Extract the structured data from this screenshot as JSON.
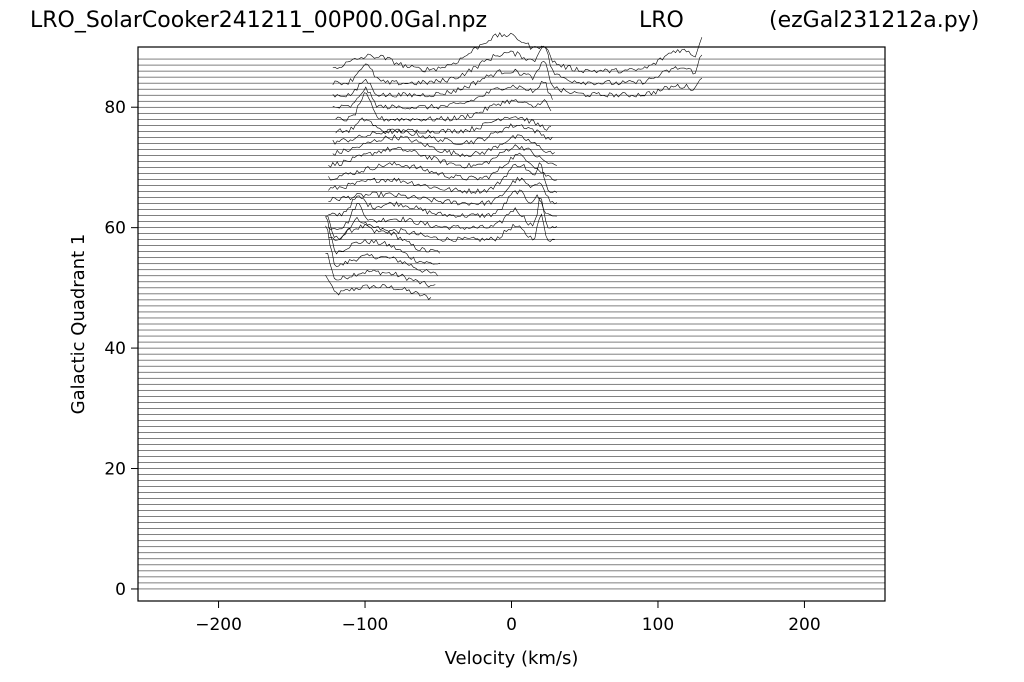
{
  "titles": {
    "left": "LRO_SolarCooker241211_00P00.0Gal.npz",
    "center": "LRO",
    "right": "(ezGal231212a.py)"
  },
  "chart_data": {
    "type": "line",
    "subtype": "waterfall (stacked spectra)",
    "xlabel": "Velocity (km/s)",
    "ylabel": "Galactic Quadrant 1",
    "xlim": [
      -255,
      255
    ],
    "ylim": [
      -2,
      90
    ],
    "xticks": [
      -200,
      -100,
      0,
      100,
      200
    ],
    "xtick_labels": [
      "−200",
      "−100",
      "0",
      "100",
      "200"
    ],
    "yticks": [
      0,
      20,
      40,
      60,
      80
    ],
    "ytick_labels": [
      "0",
      "20",
      "40",
      "60",
      "80"
    ],
    "line_color": "#000000",
    "baseline_count": 89,
    "baseline_min": 0,
    "baseline_max": 88,
    "spectra": [
      {
        "lon": 48,
        "vmin": -127,
        "vmax": -55,
        "peaks": [
          [
            -127,
            3.5,
            3
          ],
          [
            -100,
            2.0,
            16
          ],
          [
            -75,
            1.2,
            12
          ]
        ]
      },
      {
        "lon": 50,
        "vmin": -127,
        "vmax": -52,
        "peaks": [
          [
            -127,
            5.5,
            3
          ],
          [
            -100,
            2.5,
            16
          ],
          [
            -75,
            1.2,
            12
          ]
        ]
      },
      {
        "lon": 52,
        "vmin": -127,
        "vmax": -50,
        "peaks": [
          [
            -127,
            7.5,
            3
          ],
          [
            -100,
            3.0,
            16
          ],
          [
            -75,
            1.5,
            12
          ]
        ]
      },
      {
        "lon": 54,
        "vmin": -127,
        "vmax": -48,
        "peaks": [
          [
            -127,
            7.0,
            3
          ],
          [
            -102,
            3.5,
            15
          ],
          [
            -80,
            1.5,
            10
          ]
        ]
      },
      {
        "lon": 56,
        "vmin": -127,
        "vmax": -48,
        "peaks": [
          [
            -127,
            5.0,
            3
          ],
          [
            -102,
            4.0,
            15
          ],
          [
            -80,
            1.5,
            10
          ]
        ]
      },
      {
        "lon": 58,
        "vmin": -125,
        "vmax": 30,
        "peaks": [
          [
            -105,
            3.0,
            6
          ],
          [
            -80,
            1.5,
            15
          ],
          [
            2,
            2.2,
            6
          ],
          [
            20,
            4.0,
            2
          ]
        ]
      },
      {
        "lon": 60,
        "vmin": -125,
        "vmax": 32,
        "peaks": [
          [
            -105,
            3.5,
            4
          ],
          [
            -80,
            1.5,
            15
          ],
          [
            2,
            3.0,
            6
          ],
          [
            20,
            5.0,
            2
          ]
        ]
      },
      {
        "lon": 62,
        "vmin": -125,
        "vmax": 32,
        "peaks": [
          [
            -105,
            2.5,
            5
          ],
          [
            -80,
            2.0,
            15
          ],
          [
            4,
            4.0,
            7
          ],
          [
            18,
            2.5,
            3
          ]
        ]
      },
      {
        "lon": 64,
        "vmin": -125,
        "vmax": 32,
        "peaks": [
          [
            -90,
            1.5,
            25
          ],
          [
            5,
            4.0,
            8
          ],
          [
            20,
            3.0,
            3
          ]
        ]
      },
      {
        "lon": 66,
        "vmin": -125,
        "vmax": 32,
        "peaks": [
          [
            -85,
            2.0,
            22
          ],
          [
            5,
            4.5,
            9
          ],
          [
            20,
            3.5,
            2
          ]
        ]
      },
      {
        "lon": 68,
        "vmin": -125,
        "vmax": 32,
        "peaks": [
          [
            -80,
            2.5,
            22
          ],
          [
            5,
            4.0,
            10
          ]
        ]
      },
      {
        "lon": 70,
        "vmin": -125,
        "vmax": 32,
        "peaks": [
          [
            -80,
            3.0,
            22
          ],
          [
            4,
            3.5,
            12
          ]
        ]
      },
      {
        "lon": 72,
        "vmin": -122,
        "vmax": 30,
        "peaks": [
          [
            -80,
            3.0,
            20
          ],
          [
            4,
            3.0,
            12
          ]
        ]
      },
      {
        "lon": 74,
        "vmin": -122,
        "vmax": 28,
        "peaks": [
          [
            -80,
            2.0,
            20
          ],
          [
            4,
            3.0,
            14
          ]
        ]
      },
      {
        "lon": 76,
        "vmin": -120,
        "vmax": 28,
        "peaks": [
          [
            -100,
            2.0,
            5
          ],
          [
            0,
            2.5,
            14
          ]
        ]
      },
      {
        "lon": 78,
        "vmin": -120,
        "vmax": 28,
        "peaks": [
          [
            -100,
            4.0,
            4
          ],
          [
            0,
            3.0,
            16
          ],
          [
            22,
            2.0,
            3
          ]
        ]
      },
      {
        "lon": 80,
        "vmin": -122,
        "vmax": 28,
        "peaks": [
          [
            -100,
            3.0,
            4
          ],
          [
            0,
            3.5,
            18
          ],
          [
            22,
            2.5,
            3
          ],
          [
            115,
            0.6,
            10
          ]
        ]
      },
      {
        "lon": 82,
        "vmin": -122,
        "vmax": 130,
        "peaks": [
          [
            -100,
            2.5,
            4
          ],
          [
            -2,
            4.0,
            20
          ],
          [
            22,
            3.5,
            3
          ],
          [
            115,
            1.5,
            12
          ],
          [
            130,
            2.5,
            2
          ]
        ]
      },
      {
        "lon": 84,
        "vmin": -122,
        "vmax": 130,
        "peaks": [
          [
            -100,
            3.0,
            5
          ],
          [
            -2,
            5.0,
            20
          ],
          [
            22,
            4.0,
            3
          ],
          [
            115,
            2.5,
            12
          ],
          [
            130,
            3.5,
            2
          ]
        ]
      },
      {
        "lon": 86,
        "vmin": -122,
        "vmax": 130,
        "peaks": [
          [
            -95,
            2.5,
            15
          ],
          [
            -5,
            6.0,
            20
          ],
          [
            22,
            2.0,
            3
          ],
          [
            115,
            3.5,
            12
          ],
          [
            130,
            4.0,
            2
          ]
        ]
      }
    ]
  }
}
